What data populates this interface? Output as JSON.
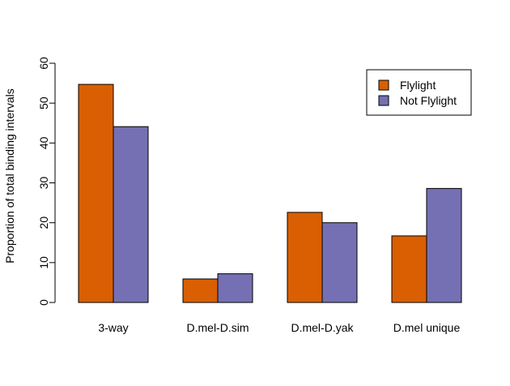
{
  "chart_data": {
    "type": "bar",
    "title": "",
    "xlabel": "",
    "ylabel": "Proportion of total binding intervals",
    "ylim": [
      0,
      60
    ],
    "yticks": [
      0,
      10,
      20,
      30,
      40,
      50,
      60
    ],
    "categories": [
      "3-way",
      "D.mel-D.sim",
      "D.mel-D.yak",
      "D.mel unique"
    ],
    "series": [
      {
        "name": "Flylight",
        "color": "#D95F02",
        "values": [
          54.7,
          5.9,
          22.6,
          16.7
        ]
      },
      {
        "name": "Not Flylight",
        "color": "#7570B3",
        "values": [
          44.1,
          7.2,
          20.0,
          28.6
        ]
      }
    ],
    "grid": false,
    "legend_position": "top-right"
  }
}
